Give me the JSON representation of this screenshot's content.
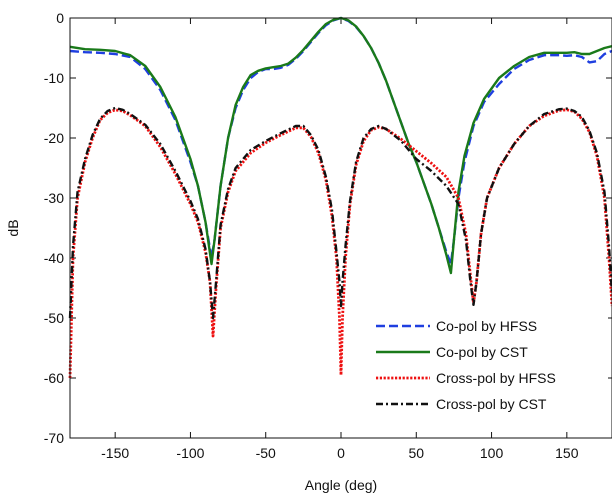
{
  "chart_data": {
    "type": "line",
    "title": "",
    "xlabel": "Angle (deg)",
    "ylabel": "dB",
    "xlim": [
      -180,
      180
    ],
    "ylim": [
      -70,
      0
    ],
    "xticks": [
      -150,
      -100,
      -50,
      0,
      50,
      100,
      150
    ],
    "yticks": [
      0,
      -10,
      -20,
      -30,
      -40,
      -50,
      -60,
      -70
    ],
    "grid": false,
    "legend_position": "lower-right",
    "series": [
      {
        "name": "Co-pol by HFSS",
        "color": "#1f3fe0",
        "style": "dashed",
        "points": [
          [
            -180,
            -5.5
          ],
          [
            -170,
            -5.7
          ],
          [
            -160,
            -5.8
          ],
          [
            -150,
            -6
          ],
          [
            -140,
            -6.5
          ],
          [
            -130,
            -8.5
          ],
          [
            -120,
            -12
          ],
          [
            -110,
            -17
          ],
          [
            -100,
            -24
          ],
          [
            -95,
            -28
          ],
          [
            -90,
            -34
          ],
          [
            -86,
            -40
          ],
          [
            -84,
            -37
          ],
          [
            -80,
            -28
          ],
          [
            -75,
            -20
          ],
          [
            -70,
            -15
          ],
          [
            -65,
            -12
          ],
          [
            -60,
            -10
          ],
          [
            -55,
            -9
          ],
          [
            -50,
            -8.5
          ],
          [
            -45,
            -8.5
          ],
          [
            -40,
            -8.3
          ],
          [
            -35,
            -7.8
          ],
          [
            -30,
            -6.8
          ],
          [
            -25,
            -5.5
          ],
          [
            -20,
            -4
          ],
          [
            -15,
            -2.5
          ],
          [
            -10,
            -1.2
          ],
          [
            -5,
            -0.4
          ],
          [
            0,
            0
          ],
          [
            5,
            -0.5
          ],
          [
            10,
            -1.5
          ],
          [
            15,
            -3
          ],
          [
            20,
            -5
          ],
          [
            25,
            -7.5
          ],
          [
            30,
            -10.5
          ],
          [
            35,
            -14
          ],
          [
            40,
            -17.5
          ],
          [
            45,
            -21
          ],
          [
            50,
            -24
          ],
          [
            55,
            -27.5
          ],
          [
            60,
            -31
          ],
          [
            65,
            -35
          ],
          [
            70,
            -39
          ],
          [
            73,
            -41
          ],
          [
            75,
            -37
          ],
          [
            78,
            -30
          ],
          [
            82,
            -24
          ],
          [
            88,
            -18
          ],
          [
            95,
            -14
          ],
          [
            105,
            -11
          ],
          [
            115,
            -8.5
          ],
          [
            125,
            -7
          ],
          [
            135,
            -6.2
          ],
          [
            145,
            -6.2
          ],
          [
            150,
            -6.3
          ],
          [
            155,
            -6.2
          ],
          [
            160,
            -6.5
          ],
          [
            165,
            -7.4
          ],
          [
            170,
            -7.2
          ],
          [
            175,
            -6
          ],
          [
            180,
            -5.5
          ]
        ]
      },
      {
        "name": "Co-pol by CST",
        "color": "#1a7a1a",
        "style": "solid",
        "points": [
          [
            -180,
            -4.8
          ],
          [
            -170,
            -5.2
          ],
          [
            -160,
            -5.3
          ],
          [
            -150,
            -5.5
          ],
          [
            -140,
            -6.2
          ],
          [
            -130,
            -8
          ],
          [
            -120,
            -11.5
          ],
          [
            -110,
            -16.5
          ],
          [
            -100,
            -23.5
          ],
          [
            -95,
            -28
          ],
          [
            -90,
            -34
          ],
          [
            -86,
            -41
          ],
          [
            -84,
            -37
          ],
          [
            -80,
            -28
          ],
          [
            -75,
            -20
          ],
          [
            -70,
            -14.5
          ],
          [
            -65,
            -11.5
          ],
          [
            -60,
            -9.5
          ],
          [
            -55,
            -8.8
          ],
          [
            -50,
            -8.4
          ],
          [
            -45,
            -8.2
          ],
          [
            -40,
            -8
          ],
          [
            -35,
            -7.6
          ],
          [
            -30,
            -6.6
          ],
          [
            -25,
            -5.3
          ],
          [
            -20,
            -3.8
          ],
          [
            -15,
            -2.3
          ],
          [
            -10,
            -1
          ],
          [
            -5,
            -0.3
          ],
          [
            0,
            0
          ],
          [
            5,
            -0.4
          ],
          [
            10,
            -1.4
          ],
          [
            15,
            -3
          ],
          [
            20,
            -5
          ],
          [
            25,
            -7.5
          ],
          [
            30,
            -10.5
          ],
          [
            35,
            -14
          ],
          [
            40,
            -17.5
          ],
          [
            45,
            -21
          ],
          [
            50,
            -24
          ],
          [
            55,
            -27.5
          ],
          [
            60,
            -31
          ],
          [
            65,
            -35
          ],
          [
            70,
            -39.5
          ],
          [
            73,
            -42.5
          ],
          [
            75,
            -37
          ],
          [
            78,
            -29
          ],
          [
            82,
            -23
          ],
          [
            88,
            -17.5
          ],
          [
            95,
            -13.5
          ],
          [
            105,
            -10
          ],
          [
            115,
            -8
          ],
          [
            125,
            -6.5
          ],
          [
            135,
            -5.8
          ],
          [
            145,
            -5.8
          ],
          [
            150,
            -5.8
          ],
          [
            155,
            -5.7
          ],
          [
            160,
            -6
          ],
          [
            165,
            -6
          ],
          [
            170,
            -5.5
          ],
          [
            175,
            -5
          ],
          [
            180,
            -4.7
          ]
        ]
      },
      {
        "name": "Cross-pol by HFSS",
        "color": "#ee1111",
        "style": "dotted",
        "points": [
          [
            -180,
            -60
          ],
          [
            -178,
            -40
          ],
          [
            -175,
            -30
          ],
          [
            -170,
            -24
          ],
          [
            -165,
            -20
          ],
          [
            -160,
            -17
          ],
          [
            -155,
            -15.8
          ],
          [
            -150,
            -15.3
          ],
          [
            -145,
            -15.5
          ],
          [
            -140,
            -16.2
          ],
          [
            -130,
            -18
          ],
          [
            -120,
            -21.5
          ],
          [
            -110,
            -26
          ],
          [
            -100,
            -31
          ],
          [
            -95,
            -34
          ],
          [
            -90,
            -39
          ],
          [
            -87,
            -44
          ],
          [
            -85,
            -53
          ],
          [
            -83,
            -45
          ],
          [
            -80,
            -35
          ],
          [
            -75,
            -29
          ],
          [
            -70,
            -25.5
          ],
          [
            -60,
            -22.5
          ],
          [
            -50,
            -20.8
          ],
          [
            -40,
            -19.5
          ],
          [
            -30,
            -18.3
          ],
          [
            -25,
            -18.3
          ],
          [
            -20,
            -19.8
          ],
          [
            -15,
            -22.5
          ],
          [
            -10,
            -27
          ],
          [
            -6,
            -33
          ],
          [
            -3,
            -40
          ],
          [
            -1,
            -50
          ],
          [
            0,
            -59.5
          ],
          [
            1,
            -50
          ],
          [
            3,
            -40
          ],
          [
            6,
            -31
          ],
          [
            10,
            -24.5
          ],
          [
            15,
            -20.5
          ],
          [
            20,
            -18.7
          ],
          [
            25,
            -18.2
          ],
          [
            30,
            -18.5
          ],
          [
            40,
            -20.2
          ],
          [
            50,
            -22.2
          ],
          [
            60,
            -24.2
          ],
          [
            70,
            -26.5
          ],
          [
            78,
            -30
          ],
          [
            83,
            -36
          ],
          [
            86,
            -43
          ],
          [
            88,
            -47.5
          ],
          [
            90,
            -44
          ],
          [
            93,
            -36
          ],
          [
            97,
            -30
          ],
          [
            105,
            -25
          ],
          [
            115,
            -21
          ],
          [
            125,
            -18
          ],
          [
            135,
            -16.3
          ],
          [
            145,
            -15.4
          ],
          [
            150,
            -15.3
          ],
          [
            155,
            -15.6
          ],
          [
            160,
            -16.8
          ],
          [
            165,
            -19
          ],
          [
            170,
            -23
          ],
          [
            175,
            -30
          ],
          [
            178,
            -40
          ],
          [
            180,
            -48
          ]
        ]
      },
      {
        "name": "Cross-pol by CST",
        "color": "#111111",
        "style": "dashdot",
        "points": [
          [
            -180,
            -50
          ],
          [
            -178,
            -38
          ],
          [
            -175,
            -29
          ],
          [
            -170,
            -23.5
          ],
          [
            -165,
            -19.5
          ],
          [
            -160,
            -16.8
          ],
          [
            -155,
            -15.5
          ],
          [
            -150,
            -15
          ],
          [
            -145,
            -15.3
          ],
          [
            -140,
            -16
          ],
          [
            -130,
            -17.8
          ],
          [
            -120,
            -21
          ],
          [
            -110,
            -25.5
          ],
          [
            -100,
            -30.5
          ],
          [
            -95,
            -33.5
          ],
          [
            -90,
            -38.5
          ],
          [
            -87,
            -44
          ],
          [
            -85,
            -50
          ],
          [
            -83,
            -44
          ],
          [
            -80,
            -34.5
          ],
          [
            -75,
            -28.5
          ],
          [
            -70,
            -25
          ],
          [
            -60,
            -22
          ],
          [
            -50,
            -20.5
          ],
          [
            -40,
            -19.2
          ],
          [
            -30,
            -18
          ],
          [
            -25,
            -18
          ],
          [
            -20,
            -19.5
          ],
          [
            -15,
            -22
          ],
          [
            -10,
            -26.5
          ],
          [
            -6,
            -32
          ],
          [
            -3,
            -39
          ],
          [
            -1,
            -44
          ],
          [
            0,
            -48
          ],
          [
            1,
            -44
          ],
          [
            3,
            -38
          ],
          [
            6,
            -30.5
          ],
          [
            10,
            -24
          ],
          [
            15,
            -20
          ],
          [
            20,
            -18.5
          ],
          [
            25,
            -18
          ],
          [
            30,
            -18.5
          ],
          [
            40,
            -20.5
          ],
          [
            50,
            -23.5
          ],
          [
            60,
            -25.5
          ],
          [
            70,
            -28
          ],
          [
            78,
            -31
          ],
          [
            83,
            -37
          ],
          [
            86,
            -44
          ],
          [
            88,
            -47.8
          ],
          [
            90,
            -44
          ],
          [
            93,
            -36
          ],
          [
            97,
            -30
          ],
          [
            105,
            -25
          ],
          [
            115,
            -21
          ],
          [
            125,
            -18
          ],
          [
            135,
            -16
          ],
          [
            145,
            -15.2
          ],
          [
            150,
            -15.1
          ],
          [
            155,
            -15.5
          ],
          [
            160,
            -16.5
          ],
          [
            165,
            -18.8
          ],
          [
            170,
            -22.5
          ],
          [
            175,
            -29
          ],
          [
            178,
            -38
          ],
          [
            180,
            -46
          ]
        ]
      }
    ]
  }
}
